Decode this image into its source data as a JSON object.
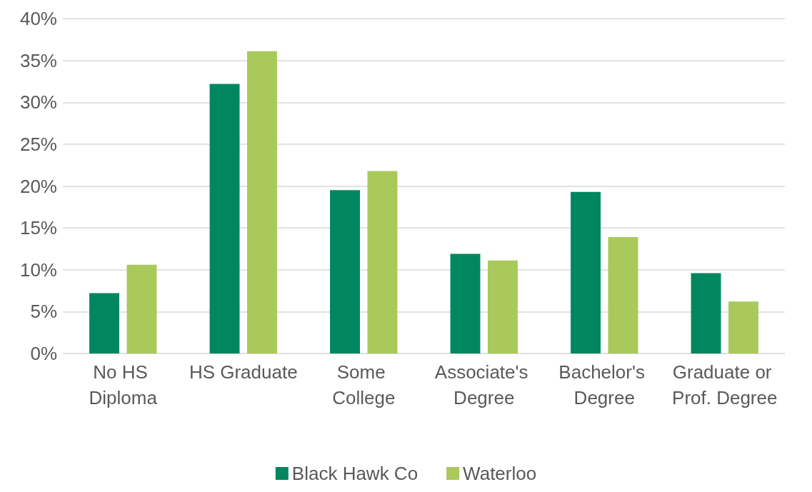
{
  "chart_data": {
    "type": "bar",
    "categories": [
      "No HS Diploma",
      "HS Graduate",
      "Some College",
      "Associate's Degree",
      "Bachelor's Degree",
      "Graduate or Prof. Degree"
    ],
    "series": [
      {
        "name": "Black Hawk Co",
        "color": "#00875f",
        "values": [
          7.2,
          32.2,
          19.5,
          11.9,
          19.3,
          9.6
        ]
      },
      {
        "name": "Waterloo",
        "color": "#a9c95a",
        "values": [
          10.6,
          36.1,
          21.8,
          11.1,
          13.9,
          6.2
        ]
      }
    ],
    "ylim": [
      0,
      40
    ],
    "yticks": [
      {
        "value": 0,
        "label": "0%"
      },
      {
        "value": 5,
        "label": "5%"
      },
      {
        "value": 10,
        "label": "10%"
      },
      {
        "value": 15,
        "label": "15%"
      },
      {
        "value": 20,
        "label": "20%"
      },
      {
        "value": 25,
        "label": "25%"
      },
      {
        "value": 30,
        "label": "30%"
      },
      {
        "value": 35,
        "label": "35%"
      },
      {
        "value": 40,
        "label": "40%"
      }
    ],
    "grid": "y",
    "legend": "bottom"
  }
}
